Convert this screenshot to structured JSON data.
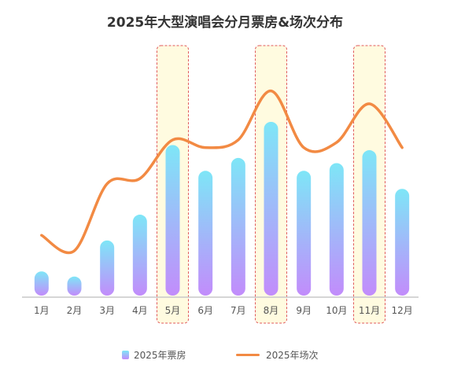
{
  "chart_data": {
    "type": "bar",
    "title": "2025年大型演唱会分月票房&场次分布",
    "categories": [
      "1月",
      "2月",
      "3月",
      "4月",
      "5月",
      "6月",
      "7月",
      "8月",
      "9月",
      "10月",
      "11月",
      "12月"
    ],
    "series": [
      {
        "name": "2025年票房",
        "type": "bar",
        "values": [
          1.0,
          0.8,
          2.2,
          3.2,
          5.9,
          4.9,
          5.4,
          6.8,
          4.9,
          5.2,
          5.7,
          4.2
        ]
      },
      {
        "name": "2025年场次",
        "type": "line",
        "values": [
          2.4,
          1.8,
          4.4,
          4.6,
          6.1,
          5.8,
          6.1,
          8.0,
          5.8,
          6.0,
          7.5,
          5.8
        ]
      }
    ],
    "highlighted_categories": [
      "5月",
      "8月",
      "11月"
    ],
    "ylim": [
      0,
      10
    ],
    "grid": false,
    "legend_position": "bottom"
  },
  "colors": {
    "bar_top": "#7ee6f7",
    "bar_bottom": "#c28cfb",
    "line": "#f28a43",
    "highlight_fill": "#fffbe0",
    "highlight_border": "#e05a5a",
    "axis": "#c8c8c8",
    "tick_text": "#555555"
  }
}
